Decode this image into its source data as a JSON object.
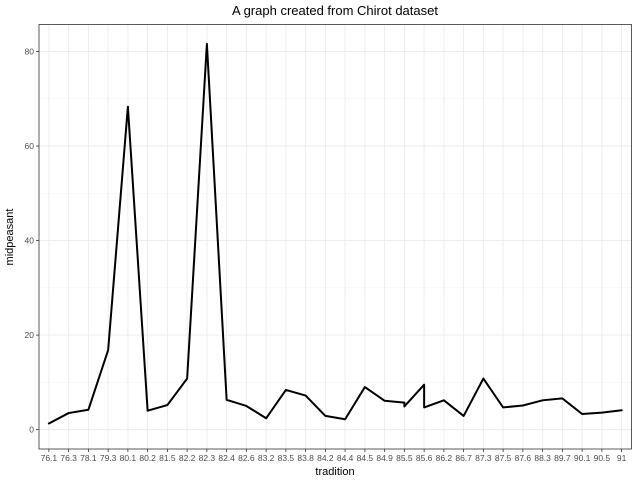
{
  "chart_data": {
    "type": "line",
    "title": "A graph created from Chirot dataset",
    "xlabel": "tradition",
    "ylabel": "midpeasant",
    "categories": [
      "76.1",
      "76.3",
      "78.1",
      "79.3",
      "80.1",
      "80.2",
      "81.5",
      "82.2",
      "82.3",
      "82.4",
      "82.6",
      "83.2",
      "83.5",
      "83.8",
      "84.2",
      "84.4",
      "84.5",
      "84.9",
      "85.5",
      "85.6",
      "86.2",
      "86.7",
      "87.3",
      "87.5",
      "87.6",
      "88.3",
      "89.7",
      "90.1",
      "90.5",
      "91"
    ],
    "series": [
      {
        "points": [
          {
            "x": "76.1",
            "y": 1.3
          },
          {
            "x": "76.3",
            "y": 3.5
          },
          {
            "x": "78.1",
            "y": 4.2
          },
          {
            "x": "79.3",
            "y": 16.8
          },
          {
            "x": "80.1",
            "y": 68.3
          },
          {
            "x": "80.2",
            "y": 4.0
          },
          {
            "x": "81.5",
            "y": 5.2
          },
          {
            "x": "82.2",
            "y": 10.8
          },
          {
            "x": "82.3",
            "y": 81.6
          },
          {
            "x": "82.4",
            "y": 6.3
          },
          {
            "x": "82.6",
            "y": 5.0
          },
          {
            "x": "83.2",
            "y": 2.4
          },
          {
            "x": "83.5",
            "y": 8.4
          },
          {
            "x": "83.8",
            "y": 7.2
          },
          {
            "x": "84.2",
            "y": 2.9
          },
          {
            "x": "84.4",
            "y": 2.2
          },
          {
            "x": "84.5",
            "y": 9.0
          },
          {
            "x": "84.9",
            "y": 6.1
          },
          {
            "x": "85.5",
            "y": 5.7
          },
          {
            "x": "85.5",
            "y": 4.9
          },
          {
            "x": "85.6",
            "y": 9.5
          },
          {
            "x": "85.6",
            "y": 4.7
          },
          {
            "x": "86.2",
            "y": 6.2
          },
          {
            "x": "86.7",
            "y": 2.9
          },
          {
            "x": "87.3",
            "y": 10.8
          },
          {
            "x": "87.5",
            "y": 4.7
          },
          {
            "x": "87.6",
            "y": 5.1
          },
          {
            "x": "88.3",
            "y": 6.2
          },
          {
            "x": "89.7",
            "y": 6.6
          },
          {
            "x": "90.1",
            "y": 3.3
          },
          {
            "x": "90.5",
            "y": 3.6
          },
          {
            "x": "91",
            "y": 4.1
          }
        ]
      }
    ],
    "yticks": [
      0,
      20,
      40,
      60,
      80
    ],
    "ylim": [
      -4.1,
      85.7
    ],
    "grid": true,
    "legend": "none",
    "line_color": "#000000"
  }
}
